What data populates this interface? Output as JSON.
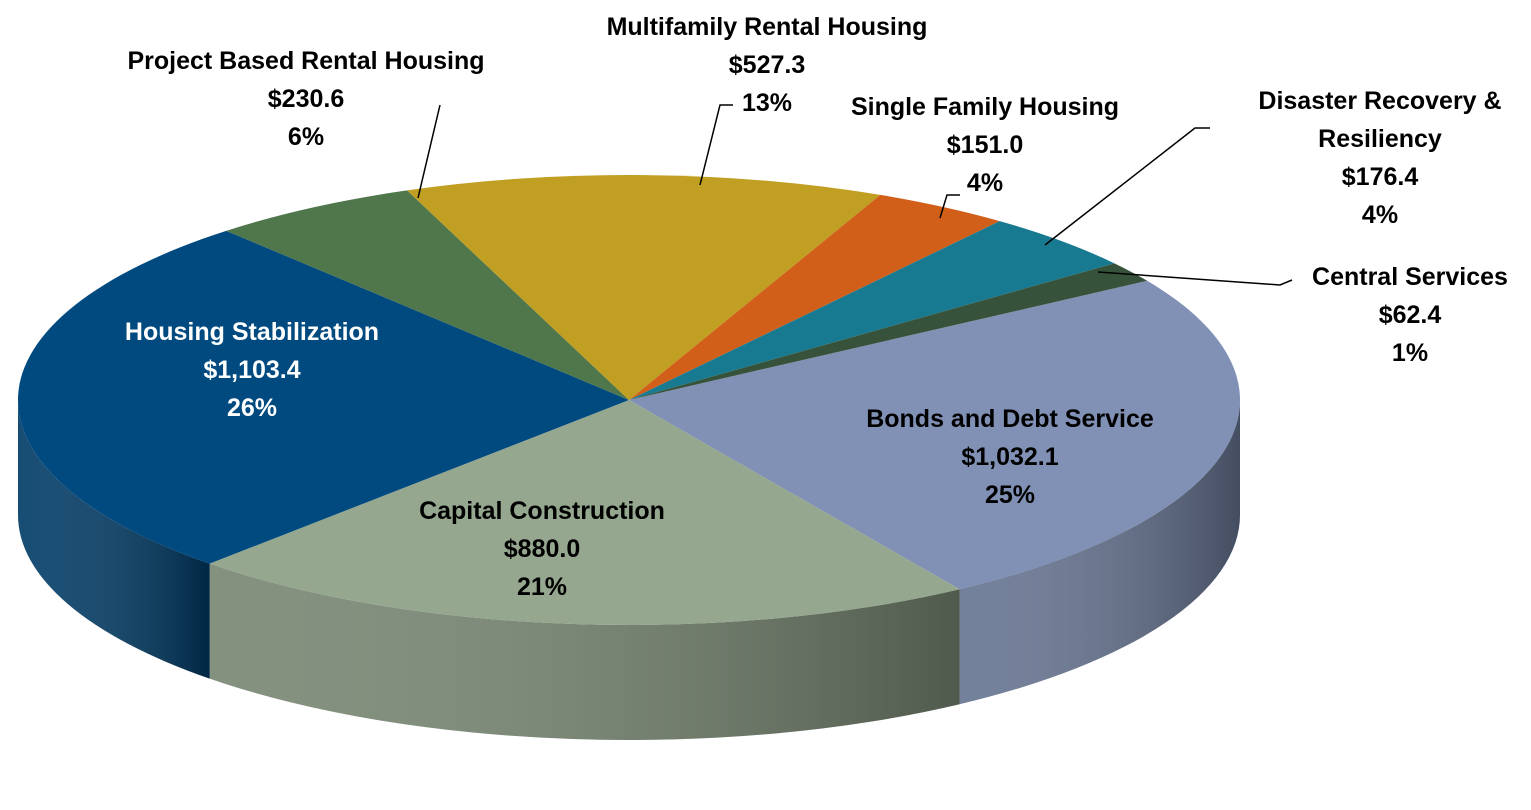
{
  "chart_data": {
    "type": "pie3d",
    "categories": [
      "Bonds and Debt Service",
      "Capital Construction",
      "Housing Stabilization",
      "Project Based Rental Housing",
      "Multifamily Rental Housing",
      "Single Family Housing",
      "Disaster Recovery & Resiliency",
      "Central Services"
    ],
    "values": [
      1032.1,
      880.0,
      1103.4,
      230.6,
      527.3,
      151.0,
      176.4,
      62.4
    ],
    "value_labels": [
      "$1,032.1",
      "$880.0",
      "$1,103.4",
      "$230.6",
      "$527.3",
      "$151.0",
      "$176.4",
      "$62.4"
    ],
    "percents": [
      25,
      21,
      26,
      6,
      13,
      4,
      4,
      1
    ],
    "percent_labels": [
      "25%",
      "21%",
      "26%",
      "6%",
      "13%",
      "4%",
      "4%",
      "1%"
    ],
    "colors": [
      "#8091b5",
      "#95a78f",
      "#004a80",
      "#50764c",
      "#c09f22",
      "#d15f1a",
      "#187a90",
      "#37523a"
    ]
  }
}
